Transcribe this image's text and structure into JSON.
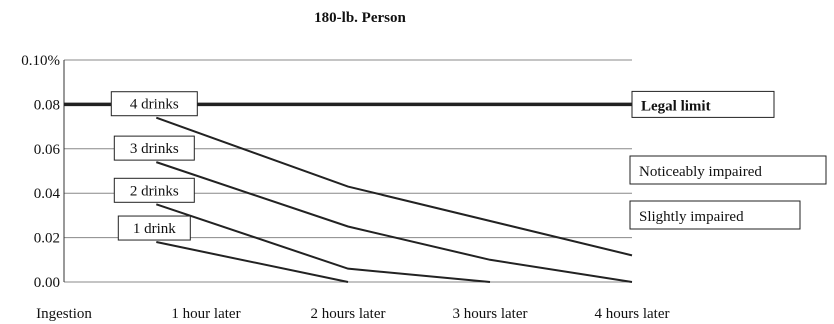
{
  "chart_data": {
    "type": "line",
    "title": "180-lb. Person",
    "xlabel": "",
    "ylabel": "",
    "categories": [
      "Ingestion",
      "1 hour later",
      "2 hours later",
      "3 hours later",
      "4 hours later"
    ],
    "y_ticks": [
      "0.00",
      "0.02",
      "0.04",
      "0.06",
      "0.08",
      "0.10%"
    ],
    "ylim": [
      0,
      0.1
    ],
    "grid": true,
    "series": [
      {
        "name": "4 drinks",
        "x": [
          0.65,
          2,
          4
        ],
        "values": [
          0.074,
          0.043,
          0.012
        ]
      },
      {
        "name": "3 drinks",
        "x": [
          0.65,
          2,
          3,
          4
        ],
        "values": [
          0.054,
          0.025,
          0.01,
          0.0
        ]
      },
      {
        "name": "2 drinks",
        "x": [
          0.65,
          2,
          3
        ],
        "values": [
          0.035,
          0.006,
          0.0
        ]
      },
      {
        "name": "1 drink",
        "x": [
          0.65,
          2
        ],
        "values": [
          0.018,
          0.0
        ]
      }
    ],
    "reference_line": {
      "label": "Legal limit",
      "value": 0.08
    },
    "annotations": [
      "Noticeably impaired",
      "Slightly impaired"
    ]
  }
}
